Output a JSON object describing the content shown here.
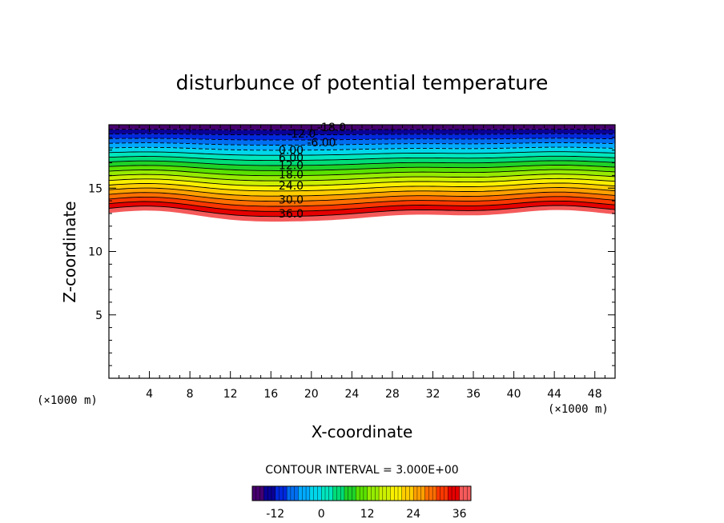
{
  "chart_data": {
    "type": "contour",
    "title": "disturbunce of potential temperature",
    "xlabel": "X-coordinate",
    "ylabel": "Z-coordinate",
    "x_unit": "(×1000 m)",
    "z_unit": "(×1000 m)",
    "xlim": [
      0,
      50
    ],
    "ylim": [
      0,
      20
    ],
    "x_ticks": [
      4,
      8,
      12,
      16,
      20,
      24,
      28,
      32,
      36,
      40,
      44,
      48
    ],
    "y_ticks": [
      5,
      10,
      15
    ],
    "contour_interval_label": "CONTOUR INTERVAL = 3.000E+00",
    "contour_interval": 3.0,
    "contour_labels": [
      {
        "text": "-18.0",
        "x": 22,
        "z": 19.8
      },
      {
        "text": "-12.0",
        "x": 19,
        "z": 19.3
      },
      {
        "text": "-6.00",
        "x": 21,
        "z": 18.6
      },
      {
        "text": "0.00",
        "x": 18,
        "z": 18.0
      },
      {
        "text": "6.00",
        "x": 18,
        "z": 17.4
      },
      {
        "text": "12.0",
        "x": 18,
        "z": 16.8
      },
      {
        "text": "18.0",
        "x": 18,
        "z": 16.1
      },
      {
        "text": "24.0",
        "x": 18,
        "z": 15.2
      },
      {
        "text": "30.0",
        "x": 18,
        "z": 14.1
      },
      {
        "text": "36.0",
        "x": 18,
        "z": 13.0
      }
    ],
    "colorbar": {
      "min": -18,
      "max": 39,
      "ticks": [
        "-12",
        "0",
        "12",
        "24",
        "36"
      ],
      "tick_values": [
        -12,
        0,
        12,
        24,
        36
      ]
    }
  }
}
